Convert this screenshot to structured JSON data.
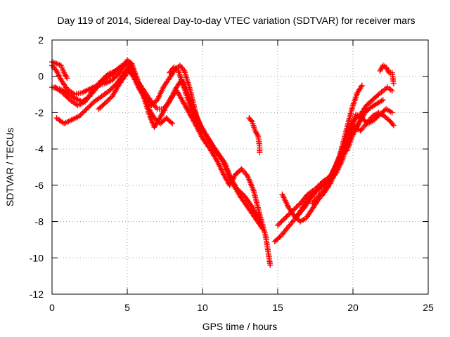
{
  "chart_data": {
    "type": "scatter",
    "title": "Day 119 of 2014, Sidereal Day-to-day VTEC variation (SDTVAR) for receiver mars",
    "xlabel": "GPS time / hours",
    "ylabel": "SDTVAR / TECUs",
    "xlim": [
      0,
      25
    ],
    "ylim": [
      -12,
      2
    ],
    "xticks": [
      0,
      5,
      10,
      15,
      20,
      25
    ],
    "yticks": [
      -12,
      -10,
      -8,
      -6,
      -4,
      -2,
      0,
      2
    ],
    "xtick_labels": [
      "0",
      "5",
      "10",
      "15",
      "20",
      "25"
    ],
    "ytick_labels": [
      "-12",
      "-10",
      "-8",
      "-6",
      "-4",
      "-2",
      "0",
      "2"
    ],
    "grid": true,
    "marker": "+",
    "color": "#ff0000",
    "series": [
      {
        "points": [
          [
            0.0,
            0.8
          ],
          [
            0.3,
            0.7
          ],
          [
            0.6,
            0.6
          ],
          [
            0.8,
            0.2
          ],
          [
            1.0,
            -0.1
          ]
        ]
      },
      {
        "points": [
          [
            0.0,
            -0.6
          ],
          [
            0.5,
            -0.7
          ],
          [
            1.0,
            -0.9
          ],
          [
            1.5,
            -1.2
          ],
          [
            2.0,
            -1.4
          ],
          [
            2.5,
            -1.1
          ],
          [
            3.0,
            -0.6
          ],
          [
            3.5,
            -0.2
          ],
          [
            4.0,
            0.1
          ],
          [
            4.5,
            0.5
          ],
          [
            5.0,
            0.8
          ],
          [
            5.3,
            0.5
          ],
          [
            5.6,
            -0.1
          ],
          [
            5.9,
            -0.8
          ],
          [
            6.2,
            -1.3
          ],
          [
            6.5,
            -1.9
          ],
          [
            6.8,
            -2.3
          ],
          [
            7.2,
            -2.6
          ],
          [
            7.6,
            -2.3
          ],
          [
            8.0,
            -2.6
          ]
        ]
      },
      {
        "points": [
          [
            0.0,
            0.6
          ],
          [
            0.3,
            0.3
          ],
          [
            0.6,
            -0.2
          ],
          [
            1.0,
            -0.7
          ],
          [
            1.5,
            -1.0
          ],
          [
            2.0,
            -0.9
          ],
          [
            2.5,
            -0.7
          ],
          [
            3.0,
            -0.5
          ],
          [
            3.5,
            -0.4
          ],
          [
            4.0,
            -0.2
          ],
          [
            4.5,
            0.2
          ],
          [
            5.0,
            0.9
          ],
          [
            5.3,
            0.7
          ],
          [
            5.6,
            0.0
          ],
          [
            5.9,
            -0.7
          ],
          [
            6.2,
            -1.4
          ],
          [
            6.5,
            -2.2
          ],
          [
            6.8,
            -2.8
          ],
          [
            7.1,
            -2.4
          ],
          [
            7.5,
            -1.8
          ],
          [
            7.9,
            -1.2
          ],
          [
            8.3,
            -0.8
          ],
          [
            8.7,
            -1.4
          ],
          [
            9.1,
            -2.0
          ],
          [
            9.5,
            -2.6
          ],
          [
            10.0,
            -3.4
          ],
          [
            10.5,
            -4.0
          ],
          [
            11.0,
            -4.7
          ],
          [
            11.4,
            -5.4
          ],
          [
            11.8,
            -6.0
          ],
          [
            12.2,
            -5.4
          ],
          [
            12.6,
            -5.1
          ],
          [
            13.0,
            -5.5
          ],
          [
            13.4,
            -6.3
          ],
          [
            13.8,
            -7.6
          ],
          [
            14.2,
            -8.8
          ],
          [
            14.5,
            -10.4
          ]
        ]
      },
      {
        "points": [
          [
            0.2,
            -0.6
          ],
          [
            0.7,
            -0.9
          ],
          [
            1.2,
            -1.3
          ],
          [
            1.7,
            -1.6
          ],
          [
            2.2,
            -1.4
          ],
          [
            2.7,
            -0.8
          ],
          [
            3.2,
            -0.3
          ],
          [
            3.7,
            0.1
          ],
          [
            4.2,
            0.3
          ],
          [
            4.7,
            0.6
          ],
          [
            5.0,
            0.6
          ],
          [
            5.4,
            0.0
          ],
          [
            5.8,
            -0.7
          ],
          [
            6.2,
            -1.2
          ],
          [
            6.6,
            -1.6
          ],
          [
            7.0,
            -1.3
          ],
          [
            7.4,
            -0.6
          ],
          [
            7.8,
            -0.1
          ],
          [
            8.2,
            0.4
          ],
          [
            8.5,
            0.6
          ],
          [
            8.8,
            0.3
          ],
          [
            9.2,
            -0.8
          ],
          [
            9.6,
            -2.2
          ],
          [
            10.0,
            -3.0
          ],
          [
            10.5,
            -3.6
          ],
          [
            11.0,
            -4.2
          ],
          [
            11.5,
            -4.8
          ],
          [
            12.0,
            -5.9
          ],
          [
            12.5,
            -6.6
          ],
          [
            13.0,
            -7.2
          ],
          [
            13.5,
            -7.8
          ],
          [
            14.0,
            -8.4
          ]
        ]
      },
      {
        "points": [
          [
            0.3,
            -2.3
          ],
          [
            0.8,
            -2.6
          ],
          [
            1.3,
            -2.4
          ],
          [
            1.8,
            -2.2
          ],
          [
            2.3,
            -1.8
          ],
          [
            2.8,
            -1.4
          ],
          [
            3.3,
            -1.1
          ],
          [
            3.8,
            -0.8
          ],
          [
            4.3,
            -0.4
          ],
          [
            4.8,
            0.2
          ],
          [
            5.0,
            0.4
          ],
          [
            5.4,
            0.0
          ],
          [
            5.8,
            -0.4
          ],
          [
            6.2,
            -0.9
          ],
          [
            6.6,
            -1.4
          ],
          [
            7.0,
            -1.8
          ],
          [
            7.4,
            -1.8
          ],
          [
            7.8,
            -1.4
          ],
          [
            8.2,
            -0.7
          ],
          [
            8.6,
            -0.2
          ],
          [
            9.0,
            -0.9
          ],
          [
            9.4,
            -1.8
          ],
          [
            9.8,
            -2.6
          ],
          [
            10.3,
            -3.3
          ],
          [
            10.8,
            -4.0
          ],
          [
            11.3,
            -4.6
          ],
          [
            11.8,
            -5.5
          ],
          [
            12.3,
            -6.2
          ],
          [
            12.8,
            -6.6
          ],
          [
            13.3,
            -7.2
          ],
          [
            13.8,
            -8.0
          ]
        ]
      },
      {
        "points": [
          [
            3.1,
            -1.8
          ],
          [
            3.5,
            -1.5
          ],
          [
            4.0,
            -1.1
          ],
          [
            4.5,
            -0.4
          ],
          [
            5.0,
            0.2
          ]
        ]
      },
      {
        "points": [
          [
            7.8,
            0.2
          ],
          [
            8.1,
            0.5
          ],
          [
            8.4,
            0.3
          ],
          [
            8.8,
            -0.7
          ],
          [
            9.2,
            -1.7
          ],
          [
            9.6,
            -2.6
          ],
          [
            10.0,
            -3.0
          ],
          [
            10.5,
            -3.6
          ],
          [
            10.9,
            -4.2
          ]
        ]
      },
      {
        "points": [
          [
            13.1,
            -2.3
          ],
          [
            13.3,
            -2.5
          ],
          [
            13.5,
            -3.0
          ],
          [
            13.7,
            -3.3
          ],
          [
            13.8,
            -3.9
          ],
          [
            13.8,
            -4.2
          ]
        ]
      },
      {
        "points": [
          [
            14.8,
            -9.1
          ],
          [
            15.2,
            -8.8
          ],
          [
            15.6,
            -8.4
          ],
          [
            16.0,
            -8.0
          ],
          [
            16.4,
            -7.6
          ],
          [
            16.8,
            -7.2
          ],
          [
            17.2,
            -6.7
          ],
          [
            17.6,
            -6.3
          ],
          [
            18.0,
            -6.0
          ],
          [
            18.4,
            -5.7
          ],
          [
            18.8,
            -5.2
          ],
          [
            19.2,
            -4.6
          ],
          [
            19.6,
            -3.8
          ],
          [
            20.0,
            -3.1
          ],
          [
            20.4,
            -2.5
          ]
        ]
      },
      {
        "points": [
          [
            15.0,
            -8.2
          ],
          [
            15.5,
            -7.8
          ],
          [
            16.0,
            -7.4
          ],
          [
            16.5,
            -7.0
          ],
          [
            17.0,
            -6.5
          ],
          [
            17.5,
            -6.2
          ],
          [
            18.0,
            -5.8
          ],
          [
            18.5,
            -5.5
          ],
          [
            18.8,
            -5.0
          ],
          [
            19.1,
            -4.4
          ],
          [
            19.4,
            -3.5
          ],
          [
            19.7,
            -2.5
          ],
          [
            20.0,
            -1.6
          ],
          [
            20.3,
            -0.9
          ],
          [
            20.6,
            -0.5
          ]
        ]
      },
      {
        "points": [
          [
            15.3,
            -6.5
          ],
          [
            15.7,
            -7.2
          ],
          [
            16.1,
            -7.7
          ],
          [
            16.5,
            -8.0
          ],
          [
            16.9,
            -7.8
          ],
          [
            17.3,
            -7.3
          ],
          [
            17.7,
            -6.8
          ],
          [
            18.1,
            -6.4
          ],
          [
            18.5,
            -5.9
          ],
          [
            18.9,
            -5.0
          ],
          [
            19.3,
            -4.2
          ],
          [
            19.7,
            -3.2
          ],
          [
            20.1,
            -2.4
          ],
          [
            20.5,
            -2.1
          ],
          [
            20.9,
            -1.6
          ],
          [
            21.3,
            -1.3
          ],
          [
            21.7,
            -1.0
          ],
          [
            22.0,
            -0.8
          ],
          [
            22.3,
            -0.6
          ],
          [
            22.6,
            -0.8
          ]
        ]
      },
      {
        "points": [
          [
            16.2,
            -7.8
          ],
          [
            16.6,
            -7.3
          ],
          [
            17.0,
            -6.8
          ],
          [
            17.4,
            -6.4
          ],
          [
            17.8,
            -6.1
          ],
          [
            18.2,
            -5.9
          ],
          [
            18.6,
            -5.4
          ],
          [
            19.0,
            -4.7
          ],
          [
            19.4,
            -3.8
          ],
          [
            19.8,
            -2.9
          ],
          [
            20.2,
            -2.1
          ],
          [
            20.6,
            -2.3
          ],
          [
            21.0,
            -2.6
          ],
          [
            21.4,
            -2.4
          ],
          [
            21.8,
            -2.1
          ],
          [
            22.2,
            -1.8
          ],
          [
            22.6,
            -2.0
          ]
        ]
      },
      {
        "points": [
          [
            17.3,
            -7.0
          ],
          [
            17.7,
            -6.6
          ],
          [
            18.1,
            -6.2
          ],
          [
            18.5,
            -5.8
          ],
          [
            18.9,
            -5.3
          ],
          [
            19.3,
            -4.6
          ],
          [
            19.7,
            -3.6
          ],
          [
            20.1,
            -2.8
          ],
          [
            20.5,
            -3.0
          ],
          [
            20.9,
            -2.6
          ],
          [
            21.3,
            -2.2
          ],
          [
            21.7,
            -2.0
          ],
          [
            22.1,
            -2.2
          ],
          [
            22.5,
            -2.5
          ],
          [
            22.7,
            -2.7
          ]
        ]
      },
      {
        "points": [
          [
            19.6,
            -4.1
          ],
          [
            20.0,
            -3.2
          ],
          [
            20.4,
            -2.6
          ],
          [
            20.8,
            -2.0
          ],
          [
            21.2,
            -1.7
          ],
          [
            21.6,
            -1.5
          ],
          [
            22.0,
            -1.3
          ]
        ]
      },
      {
        "points": [
          [
            21.8,
            0.3
          ],
          [
            22.0,
            0.6
          ],
          [
            22.2,
            0.5
          ],
          [
            22.4,
            0.2
          ],
          [
            22.6,
            0.2
          ],
          [
            22.7,
            -0.4
          ]
        ]
      }
    ]
  }
}
